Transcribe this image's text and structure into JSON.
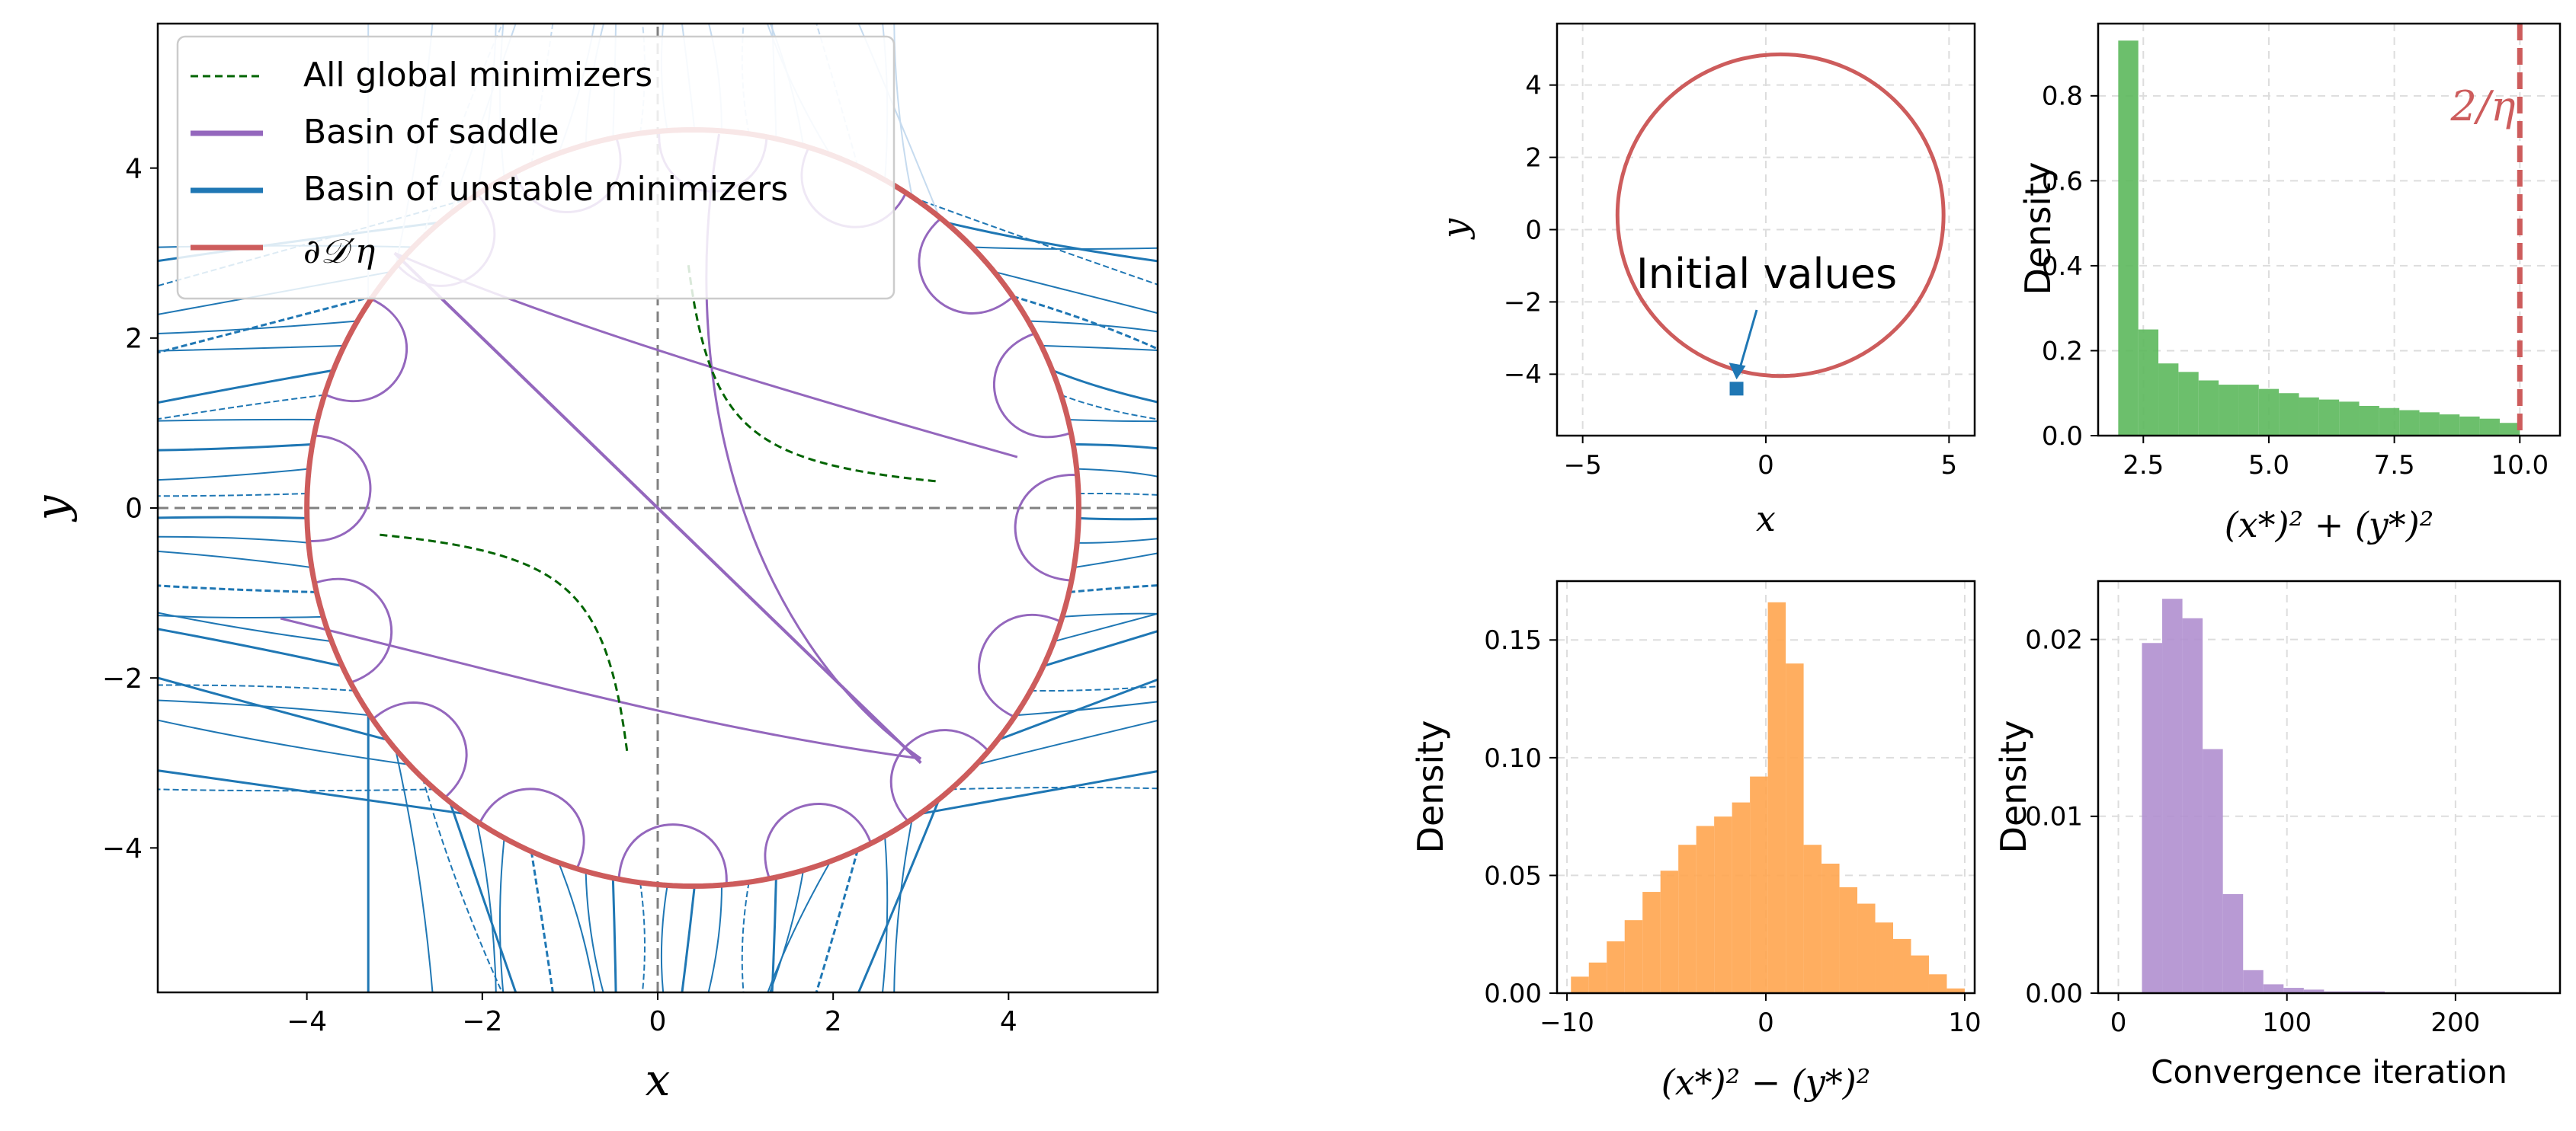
{
  "colors": {
    "global_min": "#006400",
    "saddle": "#9467bd",
    "unstable": "#1f77b4",
    "boundary": "#cd5c5c",
    "hist_radius": "#5cb85c",
    "hist_diff": "#ffa54f",
    "hist_iter": "#b08fcf",
    "dashed_axis": "#808080",
    "grid": "#dddddd"
  },
  "chart_data": [
    {
      "id": "main",
      "type": "line",
      "xlabel": "x",
      "ylabel": "y",
      "xlim": [
        -5.7,
        5.7
      ],
      "ylim": [
        -5.7,
        5.7
      ],
      "xticks": [
        -4,
        -2,
        0,
        2,
        4
      ],
      "yticks": [
        -4,
        -2,
        0,
        2,
        4
      ],
      "grid": false,
      "legend_position": "upper-left",
      "legend": [
        {
          "label": "All global minimizers",
          "style": "dashed",
          "color_key": "global_min"
        },
        {
          "label": "Basin of saddle",
          "style": "solid",
          "color_key": "saddle"
        },
        {
          "label": "Basin of unstable minimizers",
          "style": "solid",
          "color_key": "unstable"
        },
        {
          "label": "∂𝒟′η",
          "style": "solid",
          "color_key": "boundary"
        }
      ],
      "boundary_curve": {
        "center": [
          0.4,
          0.0
        ],
        "radius_x": 4.4,
        "radius_y": 4.45
      },
      "global_minimizers_hyperbola": {
        "xy": 1,
        "x_range": [
          0.35,
          3.2
        ]
      },
      "saddle_diagonal": {
        "from": [
          -3.0,
          3.0
        ],
        "to": [
          3.0,
          -3.0
        ]
      }
    },
    {
      "id": "initial",
      "type": "scatter",
      "xlabel": "x",
      "ylabel": "y",
      "xlim": [
        -5.7,
        5.7
      ],
      "ylim": [
        -5.7,
        5.7
      ],
      "xticks": [
        -5,
        0,
        5
      ],
      "yticks": [
        -4,
        -2,
        0,
        2,
        4
      ],
      "grid": true,
      "circle": {
        "center": [
          0.4,
          0.4
        ],
        "radius": 4.45
      },
      "point": {
        "x": -0.8,
        "y": -4.4
      },
      "annotation": "Initial values"
    },
    {
      "id": "radius",
      "type": "bar",
      "xlabel": "(x*)² + (y*)²",
      "ylabel": "Density",
      "xlim": [
        1.6,
        10.8
      ],
      "ylim": [
        0,
        0.97
      ],
      "xticks": [
        2.5,
        5.0,
        7.5,
        10.0
      ],
      "xtick_labels": [
        "2.5",
        "5.0",
        "7.5",
        "10.0"
      ],
      "yticks": [
        0.0,
        0.2,
        0.4,
        0.6,
        0.8
      ],
      "ytick_labels": [
        "0.0",
        "0.2",
        "0.4",
        "0.6",
        "0.8"
      ],
      "grid": true,
      "bin_start": 2.0,
      "bin_width": 0.4,
      "values": [
        0.93,
        0.25,
        0.17,
        0.15,
        0.13,
        0.12,
        0.12,
        0.11,
        0.1,
        0.09,
        0.085,
        0.08,
        0.07,
        0.065,
        0.06,
        0.055,
        0.05,
        0.045,
        0.04,
        0.03
      ],
      "vline": {
        "x": 10.0,
        "label": "2/η"
      }
    },
    {
      "id": "diff",
      "type": "bar",
      "xlabel": "(x*)² − (y*)²",
      "ylabel": "Density",
      "xlim": [
        -10.5,
        10.5
      ],
      "ylim": [
        0,
        0.175
      ],
      "xticks": [
        -10,
        0,
        10
      ],
      "xtick_labels": [
        "−10",
        "0",
        "10"
      ],
      "yticks": [
        0.0,
        0.05,
        0.1,
        0.15
      ],
      "ytick_labels": [
        "0.00",
        "0.05",
        "0.10",
        "0.15"
      ],
      "grid": true,
      "bin_start": -9.8,
      "bin_width": 0.9,
      "values": [
        0.007,
        0.013,
        0.022,
        0.031,
        0.043,
        0.052,
        0.063,
        0.071,
        0.075,
        0.081,
        0.092,
        0.166,
        0.14,
        0.063,
        0.055,
        0.045,
        0.038,
        0.03,
        0.023,
        0.016,
        0.008,
        0.002
      ]
    },
    {
      "id": "iter",
      "type": "bar",
      "xlabel": "Convergence iteration",
      "ylabel": "Density",
      "xlim": [
        -12,
        262
      ],
      "ylim": [
        0,
        0.0233
      ],
      "xticks": [
        0,
        100,
        200
      ],
      "xtick_labels": [
        "0",
        "100",
        "200"
      ],
      "yticks": [
        0.0,
        0.01,
        0.02
      ],
      "ytick_labels": [
        "0.00",
        "0.01",
        "0.02"
      ],
      "grid": true,
      "bin_start": 2,
      "bin_width": 12,
      "values": [
        0.0,
        0.0198,
        0.0223,
        0.0212,
        0.0138,
        0.0056,
        0.0013,
        0.0005,
        0.0003,
        0.0002,
        0.0001,
        0.0001,
        0.0001,
        5e-05,
        5e-05,
        5e-05,
        5e-05,
        5e-05,
        5e-05,
        5e-05
      ]
    }
  ]
}
